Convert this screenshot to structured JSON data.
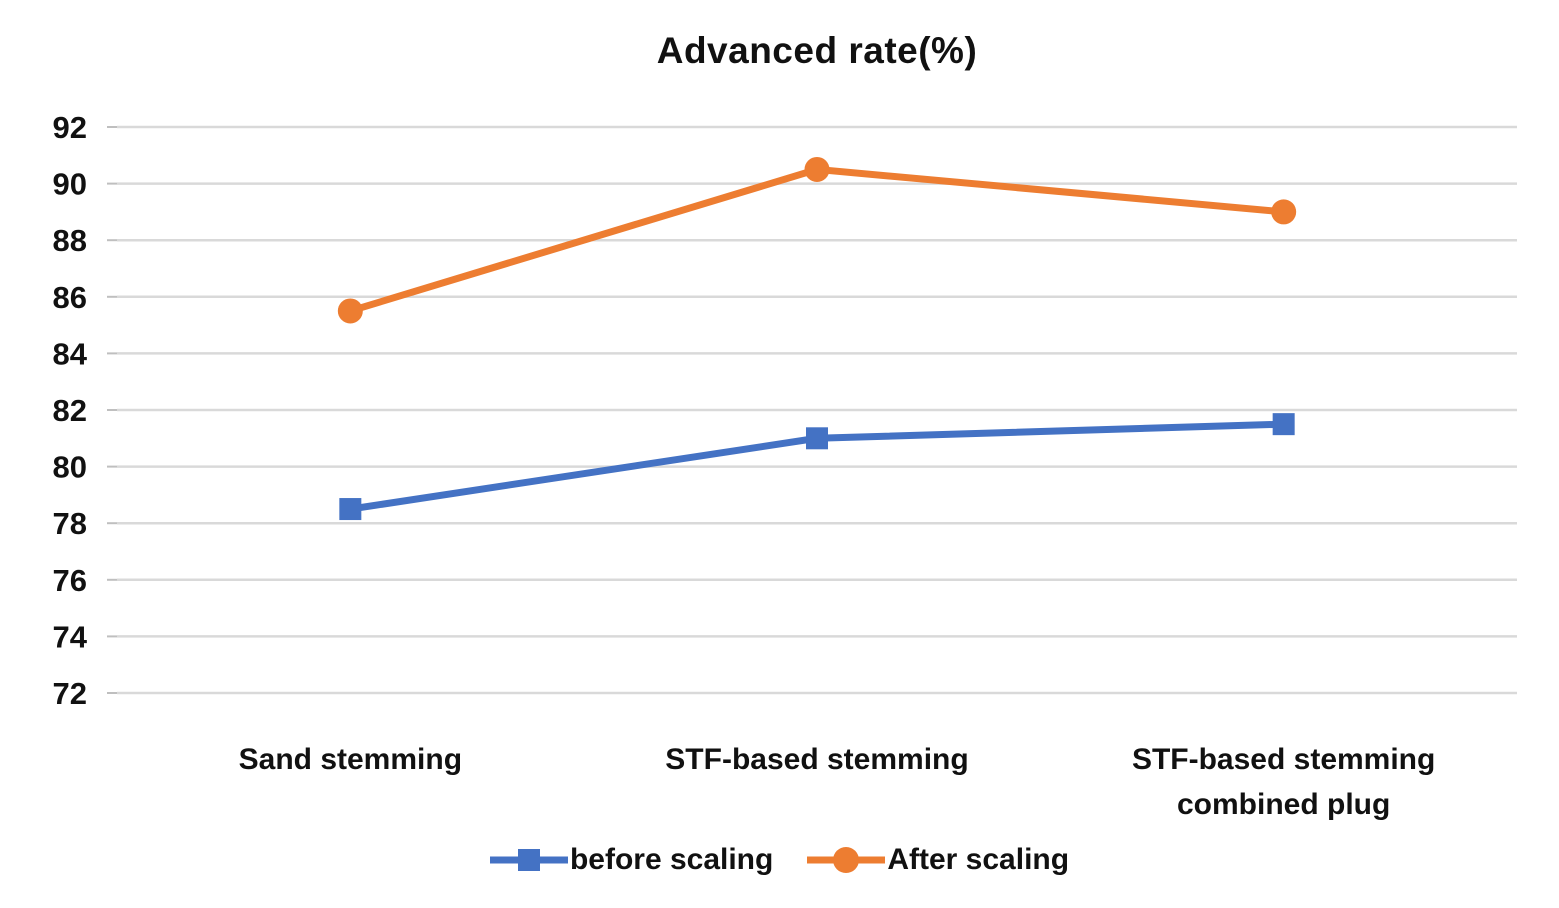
{
  "chart_data": {
    "type": "line",
    "title": "Advanced rate(%)",
    "categories": [
      "Sand stemming",
      "STF-based stemming",
      "STF-based stemming\ncombined plug"
    ],
    "series": [
      {
        "name": "before scaling",
        "values": [
          78.5,
          81,
          81.5
        ],
        "color": "#4472C4",
        "marker": "square"
      },
      {
        "name": "After scaling",
        "values": [
          85.5,
          90.5,
          89
        ],
        "color": "#ED7D31",
        "marker": "circle"
      }
    ],
    "xlabel": "",
    "ylabel": "",
    "ylim": [
      72,
      92
    ],
    "yticks": [
      72,
      74,
      76,
      78,
      80,
      82,
      84,
      86,
      88,
      90,
      92
    ],
    "grid": "horizontal",
    "gridline_color": "#D9D9D9",
    "tick_mark_color": "#BFBFBF",
    "text_color": "#111111",
    "legend_position": "bottom-center"
  }
}
